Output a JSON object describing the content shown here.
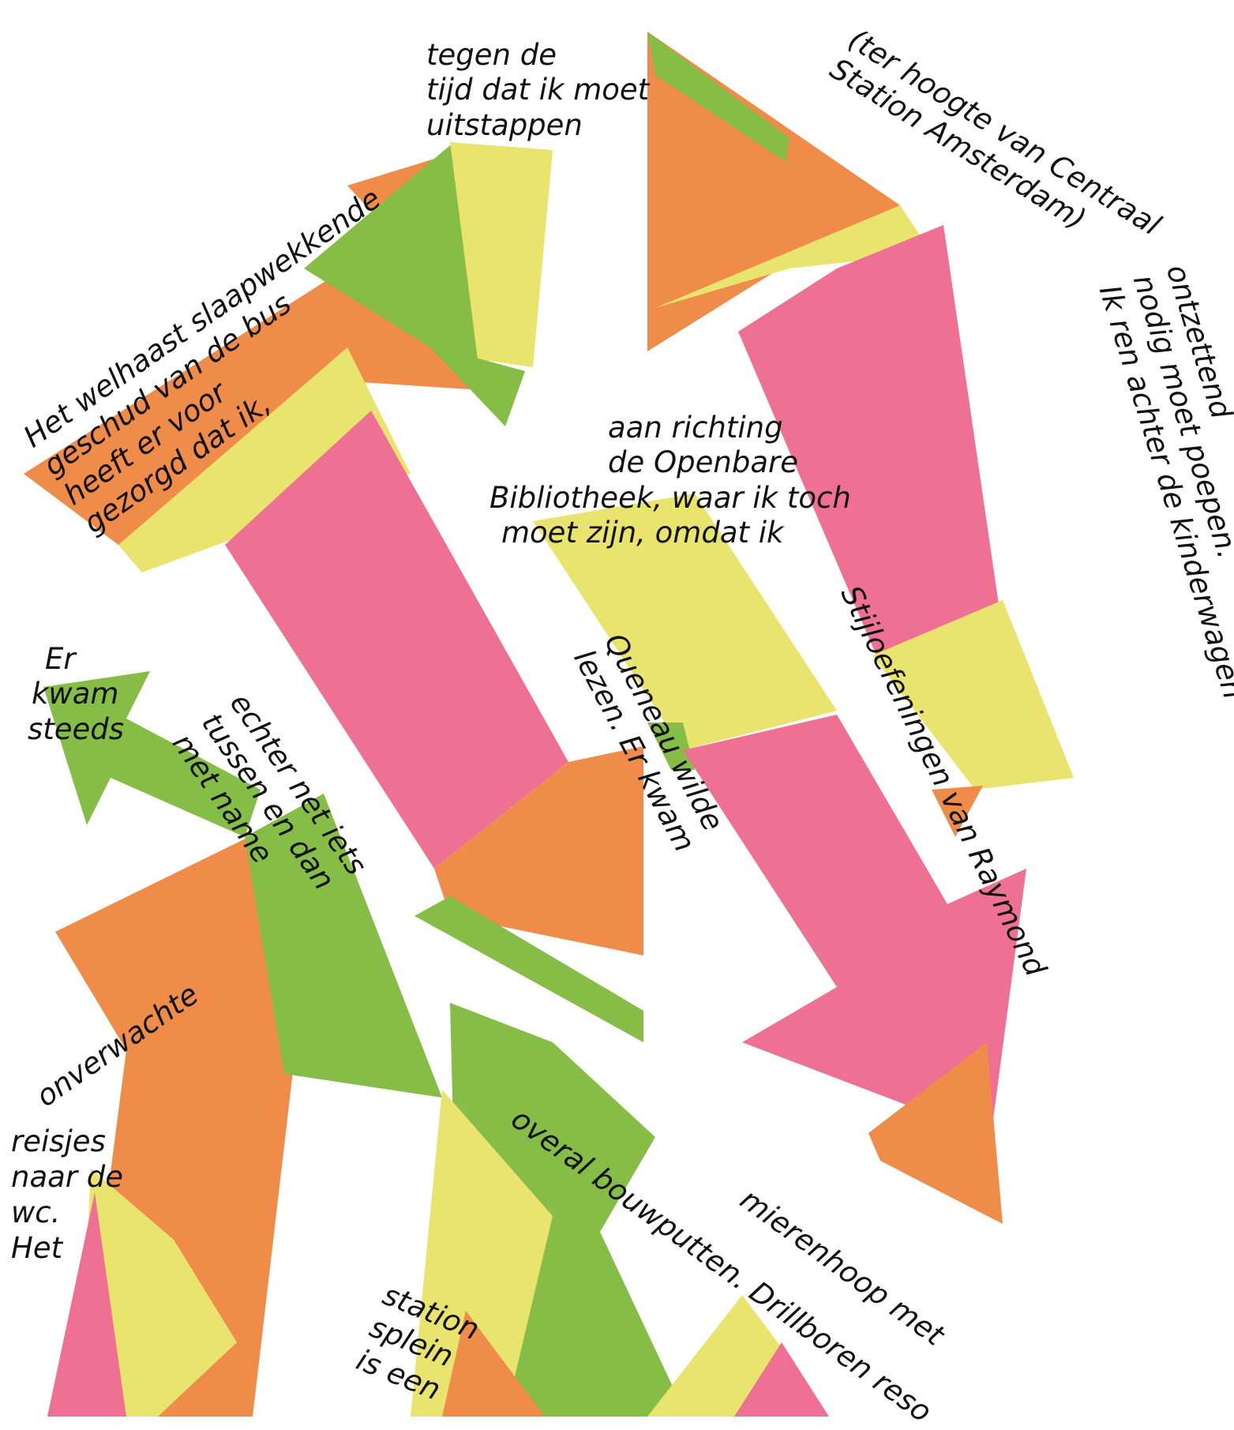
{
  "colors": {
    "background": "#ffffff",
    "orange": "#ef8c4a",
    "pink": "#ee7093",
    "green": "#86bd47",
    "yellow": "#e9e46e",
    "text": "#111111"
  },
  "text_fragments": [
    {
      "id": "slaapwekkende",
      "lines": [
        "Het welhaast slaapwekkende",
        "geschud van de bus",
        "heeft er voor",
        "gezorgd dat ik,"
      ]
    },
    {
      "id": "tegen-de-tijd",
      "lines": [
        "tegen de",
        "tijd dat ik moet",
        "uitstappen"
      ]
    },
    {
      "id": "ter-hoogte",
      "lines": [
        "(ter hoogte van Centraal",
        "Station Amsterdam)"
      ]
    },
    {
      "id": "ontzettend",
      "lines": [
        "ontzettend",
        "nodig moet poepen.",
        "Ik ren achter de kinderwagen"
      ]
    },
    {
      "id": "aan-richting",
      "lines": [
        "aan richting",
        "de Openbare",
        "Bibliotheek, waar ik toch",
        "moet zijn, omdat ik"
      ]
    },
    {
      "id": "stijloefeningen",
      "lines": [
        "Stijloefeningen van Raymond"
      ]
    },
    {
      "id": "queneau",
      "lines": [
        "Queneau wilde",
        "lezen. Er kwam"
      ]
    },
    {
      "id": "er-kwam-steeds",
      "lines": [
        "Er",
        "kwam",
        "steeds"
      ]
    },
    {
      "id": "echter",
      "lines": [
        "echter net iets",
        "tussen en dan",
        "met name"
      ]
    },
    {
      "id": "onverwachte",
      "lines": [
        "onverwachte"
      ]
    },
    {
      "id": "reisjes",
      "lines": [
        "reisjes",
        "naar de",
        "wc.",
        "Het"
      ]
    },
    {
      "id": "bouwputten",
      "lines": [
        "overal bouwputten. Drillboren reso"
      ]
    },
    {
      "id": "mierenhoop",
      "lines": [
        "mierenhoop met"
      ]
    },
    {
      "id": "stationsplein",
      "lines": [
        "station",
        "splein",
        "is een"
      ]
    }
  ]
}
